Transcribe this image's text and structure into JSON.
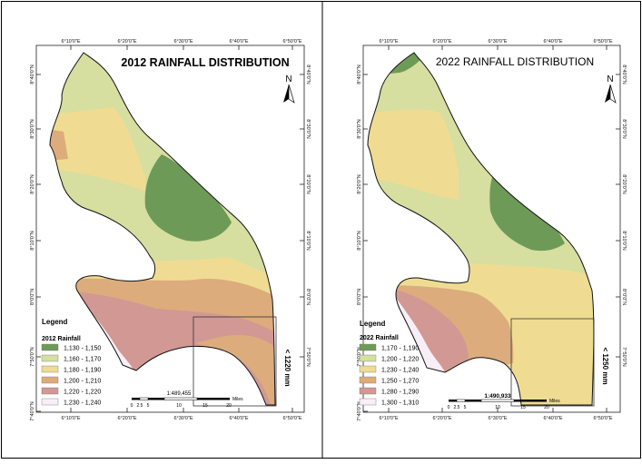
{
  "left_map": {
    "title": "2012 RAINFALL DISTRIBUTION",
    "north_label": "N",
    "top_ticks": [
      "6°10'0\"E",
      "6°20'0\"E",
      "6°30'0\"E",
      "6°40'0\"E",
      "6°50'0\"E"
    ],
    "bottom_ticks": [
      "6°10'0\"E",
      "6°20'0\"E",
      "6°30'0\"E",
      "6°40'0\"E",
      "6°50'0\"E"
    ],
    "left_ticks": [
      "8°40'0\"N",
      "8°30'0\"N",
      "8°20'0\"N",
      "8°10'0\"N",
      "8°0'0\"N",
      "7°50'0\"N",
      "7°40'0\"N"
    ],
    "right_ticks": [
      "8°40'0\"N",
      "8°30'0\"N",
      "8°20'0\"N",
      "8°10'0\"N",
      "8°0'0\"N",
      "7°50'0\"N"
    ],
    "legend_title": "Legend",
    "legend_subtitle": "2012 Rainfall",
    "legend": [
      {
        "label": "1,130 - 1,150",
        "color": "#6e9a57"
      },
      {
        "label": "1,160 - 1,170",
        "color": "#d6dea0"
      },
      {
        "label": "1,180 - 1,190",
        "color": "#efdc92"
      },
      {
        "label": "1,200 - 1,210",
        "color": "#dcac7c"
      },
      {
        "label": "1,220 - 1,220",
        "color": "#d19894"
      },
      {
        "label": "1,230 - 1,240",
        "color": "#f8eef6"
      }
    ],
    "scale_ratio": "1:489,455",
    "scale_labels": [
      "0",
      "2.5",
      "5",
      "10",
      "15",
      "20"
    ],
    "scale_unit": "Miles",
    "side_label": "< 1220 mm"
  },
  "right_map": {
    "title": "2022 RAINFALL DISTRIBUTION",
    "north_label": "N",
    "top_ticks": [
      "6°10'0\"E",
      "6°20'0\"E",
      "6°30'0\"E",
      "6°40'0\"E",
      "6°50'0\"E"
    ],
    "bottom_ticks": [
      "6°10'0\"E",
      "6°20'0\"E",
      "6°30'0\"E",
      "6°40'0\"E",
      "6°50'0\"E"
    ],
    "left_ticks": [
      "8°40'0\"N",
      "8°30'0\"N",
      "8°20'0\"N",
      "8°10'0\"N",
      "8°0'0\"N",
      "7°50'0\"N",
      "7°40'0\"N"
    ],
    "right_ticks": [
      "8°40'0\"N",
      "8°30'0\"N",
      "8°20'0\"N",
      "8°10'0\"N",
      "8°0'0\"N",
      "7°50'0\"N"
    ],
    "legend_title": "Legend",
    "legend_subtitle": "2022 Rainfall",
    "legend": [
      {
        "label": "1,170 - 1,190",
        "color": "#6e9a57"
      },
      {
        "label": "1,200 - 1,220",
        "color": "#d6dea0"
      },
      {
        "label": "1,230 - 1,240",
        "color": "#efdc92"
      },
      {
        "label": "1,250 - 1,270",
        "color": "#dcac7c"
      },
      {
        "label": "1,280 - 1,290",
        "color": "#d19894"
      },
      {
        "label": "1,300 - 1,310",
        "color": "#f8eef6"
      }
    ],
    "scale_ratio": "1:490,933",
    "scale_labels": [
      "0",
      "2.5",
      "5",
      "10",
      "15",
      "20"
    ],
    "scale_unit": "Miles",
    "side_label": "< 1250 mm"
  }
}
